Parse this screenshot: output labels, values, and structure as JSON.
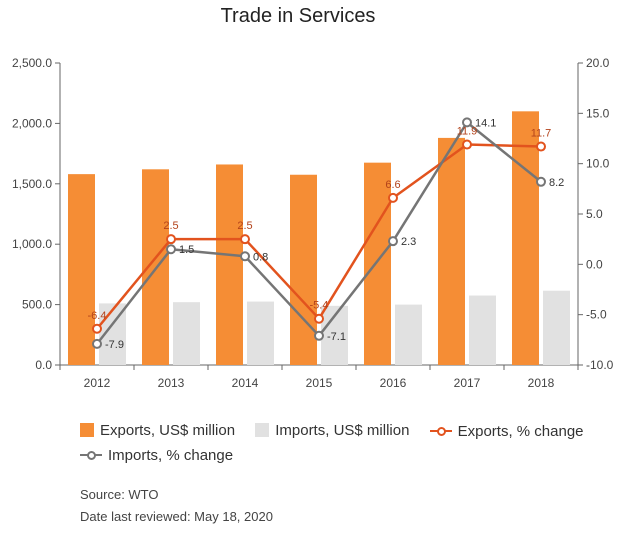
{
  "chart_data": {
    "type": "bar",
    "title": "Trade in Services",
    "categories": [
      "2012",
      "2013",
      "2014",
      "2015",
      "2016",
      "2017",
      "2018"
    ],
    "left_axis": {
      "ylim": [
        0,
        2500
      ],
      "ticks": [
        "0.0",
        "500.0",
        "1,000.0",
        "1,500.0",
        "2,000.0",
        "2,500.0"
      ]
    },
    "right_axis": {
      "ylim": [
        -10,
        20
      ],
      "ticks": [
        "-10.0",
        "-5.0",
        "0.0",
        "5.0",
        "10.0",
        "15.0",
        "20.0"
      ]
    },
    "series": [
      {
        "name": "Exports, US$ million",
        "kind": "bar",
        "axis": "left",
        "color": "#f58d35",
        "values": [
          1580,
          1620,
          1660,
          1575,
          1675,
          1880,
          2100
        ]
      },
      {
        "name": "Imports, US$ million",
        "kind": "bar",
        "axis": "left",
        "color": "#e1e1e1",
        "values": [
          510,
          520,
          525,
          490,
          500,
          575,
          615
        ]
      },
      {
        "name": "Exports, % change",
        "kind": "line",
        "axis": "right",
        "color": "#e2531e",
        "values": [
          -6.4,
          2.5,
          2.5,
          -5.4,
          6.6,
          11.9,
          11.7
        ],
        "labels": [
          "-6.4",
          "2.5",
          "2.5",
          "-5.4",
          "6.6",
          "11.9",
          "11.7"
        ]
      },
      {
        "name": "Imports, % change",
        "kind": "line",
        "axis": "right",
        "color": "#757575",
        "values": [
          -7.9,
          1.5,
          0.8,
          -7.1,
          2.3,
          14.1,
          8.2
        ],
        "labels": [
          "-7.9",
          "1.5",
          "0.8",
          "-7.1",
          "2.3",
          "14.1",
          "8.2"
        ]
      }
    ],
    "grid": false,
    "legend_position": "bottom"
  },
  "legend": {
    "exports_bar": "Exports, US$ million",
    "imports_bar": "Imports, US$ million",
    "exports_line": "Exports, % change",
    "imports_line": "Imports, % change"
  },
  "footer": {
    "source": "Source: WTO",
    "reviewed": "Date last reviewed: May 18, 2020"
  }
}
